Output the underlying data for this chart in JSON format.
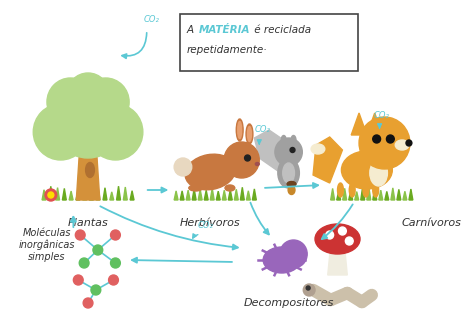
{
  "bg_color": "#ffffff",
  "arrow_color": "#5bc8d4",
  "text_color": "#333333",
  "title_highlight_color": "#5bc8d4",
  "labels": {
    "plantas": "Plantas",
    "herbivoros": "Herbívoros",
    "carnivoros": "Carnívoros",
    "decompositores": "Decompositores",
    "moleculas": "Moléculas\ninorgânicas\nsimples"
  },
  "grass_color": "#8bc34a",
  "grass_dark": "#6aaa20",
  "tree_trunk_color": "#d4913a",
  "tree_top_color": "#b5d98a",
  "tree_mark_color": "#b07030",
  "rabbit_color": "#c87840",
  "rabbit_ear_inner": "#e8a070",
  "fox_color": "#e8a030",
  "fox_white": "#f5ecd0",
  "mushroom_top_color": "#cc3333",
  "mushroom_stem_color": "#f0ede0",
  "bug_color": "#9966bb",
  "worm_color": "#ccc0aa",
  "worm_dark": "#b0a090",
  "molecule_color": "#5bc8d4",
  "atom_red": "#e06060",
  "atom_green": "#60c060",
  "flower_color": "#e05050",
  "squirrel_color": "#a0a0a0",
  "squirrel_light": "#c0c0c0"
}
